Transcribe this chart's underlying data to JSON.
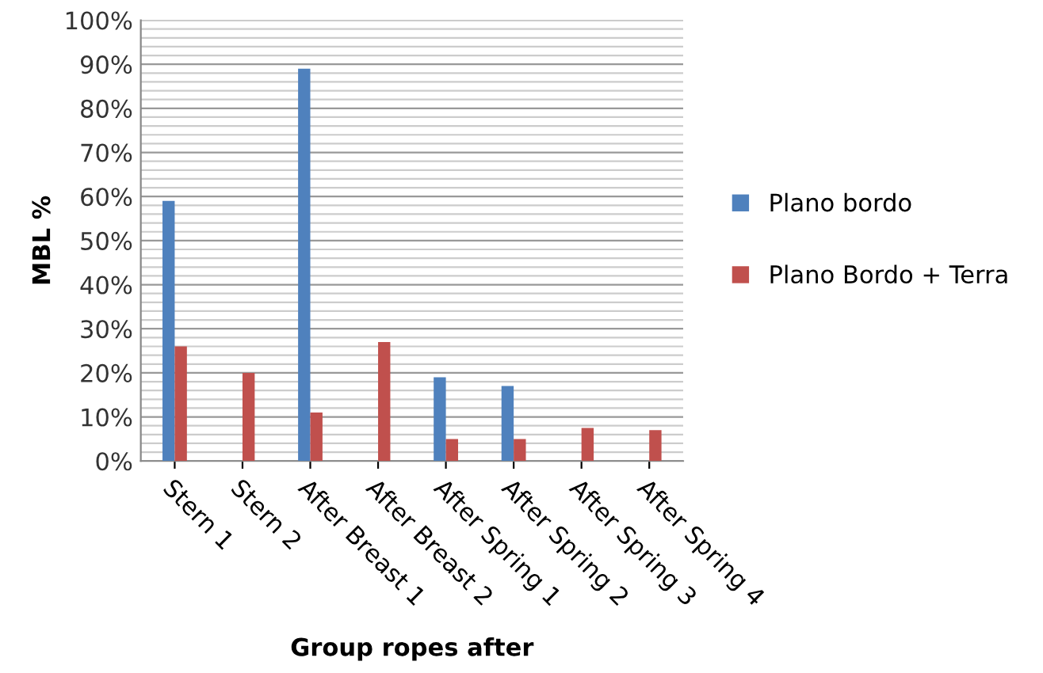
{
  "chart_data": {
    "type": "bar",
    "xlabel": "Group ropes after",
    "ylabel": "MBL %",
    "categories": [
      "Stern 1",
      "Stern 2",
      "After Breast 1",
      "After Breast 2",
      "After Spring 1",
      "After Spring 2",
      "After Spring 3",
      "After Spring 4"
    ],
    "series": [
      {
        "name": "Plano bordo",
        "color": "#4f81bd",
        "values": [
          59,
          null,
          89,
          null,
          19,
          17,
          null,
          null
        ]
      },
      {
        "name": "Plano Bordo + Terra",
        "color": "#c0504d",
        "values": [
          26,
          20,
          11,
          27,
          5,
          5,
          7.5,
          7
        ]
      }
    ],
    "ylim": [
      0,
      100
    ],
    "yticks": [
      {
        "value": 0,
        "label": "0%"
      },
      {
        "value": 2,
        "label": null
      },
      {
        "value": 4,
        "label": null
      },
      {
        "value": 6,
        "label": null
      },
      {
        "value": 8,
        "label": null
      },
      {
        "value": 10,
        "label": "10%"
      },
      {
        "value": 12,
        "label": null
      },
      {
        "value": 14,
        "label": null
      },
      {
        "value": 16,
        "label": null
      },
      {
        "value": 18,
        "label": null
      },
      {
        "value": 20,
        "label": "20%"
      },
      {
        "value": 22,
        "label": null
      },
      {
        "value": 24,
        "label": null
      },
      {
        "value": 26,
        "label": null
      },
      {
        "value": 28,
        "label": null
      },
      {
        "value": 30,
        "label": "30%"
      },
      {
        "value": 32,
        "label": null
      },
      {
        "value": 34,
        "label": null
      },
      {
        "value": 36,
        "label": null
      },
      {
        "value": 38,
        "label": null
      },
      {
        "value": 40,
        "label": "40%"
      },
      {
        "value": 42,
        "label": null
      },
      {
        "value": 44,
        "label": null
      },
      {
        "value": 46,
        "label": null
      },
      {
        "value": 48,
        "label": null
      },
      {
        "value": 50,
        "label": "50%"
      },
      {
        "value": 52,
        "label": null
      },
      {
        "value": 54,
        "label": null
      },
      {
        "value": 56,
        "label": null
      },
      {
        "value": 58,
        "label": null
      },
      {
        "value": 60,
        "label": "60%"
      },
      {
        "value": 62,
        "label": null
      },
      {
        "value": 64,
        "label": null
      },
      {
        "value": 66,
        "label": null
      },
      {
        "value": 68,
        "label": null
      },
      {
        "value": 70,
        "label": "70%"
      },
      {
        "value": 72,
        "label": null
      },
      {
        "value": 74,
        "label": null
      },
      {
        "value": 76,
        "label": null
      },
      {
        "value": 78,
        "label": null
      },
      {
        "value": 80,
        "label": "80%"
      },
      {
        "value": 82,
        "label": null
      },
      {
        "value": 84,
        "label": null
      },
      {
        "value": 86,
        "label": null
      },
      {
        "value": 88,
        "label": null
      },
      {
        "value": 90,
        "label": "90%"
      },
      {
        "value": 92,
        "label": null
      },
      {
        "value": 94,
        "label": null
      },
      {
        "value": 96,
        "label": null
      },
      {
        "value": 98,
        "label": null
      },
      {
        "value": 100,
        "label": "100%"
      }
    ],
    "grid": "y",
    "legend": "right"
  }
}
